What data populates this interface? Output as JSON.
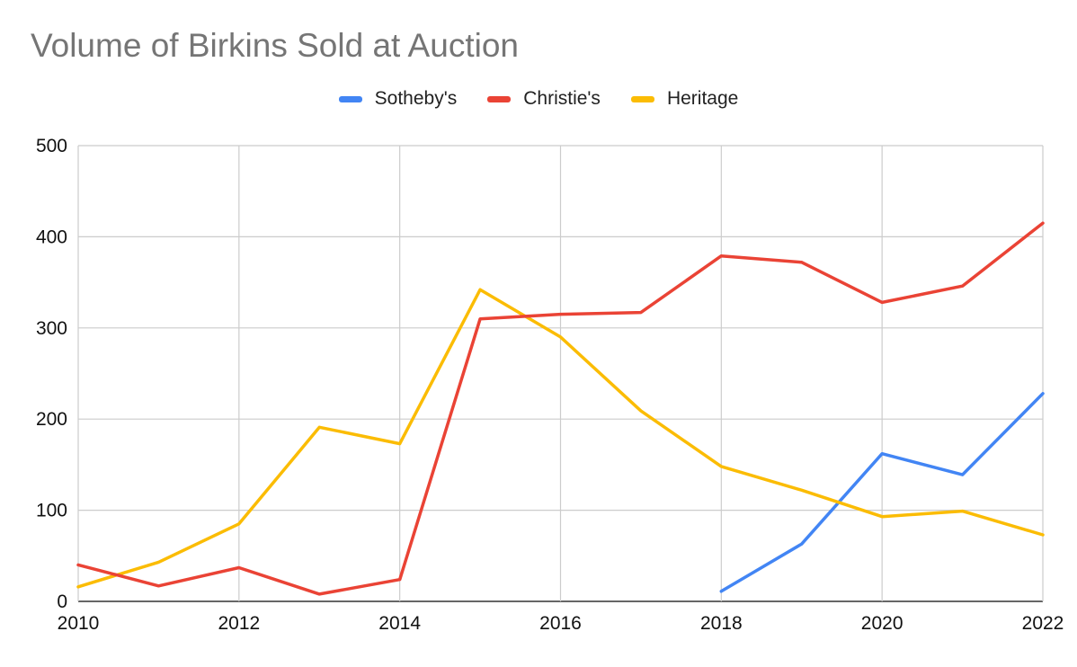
{
  "chart_data": {
    "type": "line",
    "title": "Volume of Birkins Sold at Auction",
    "x": [
      2010,
      2011,
      2012,
      2013,
      2014,
      2015,
      2016,
      2017,
      2018,
      2019,
      2020,
      2021,
      2022
    ],
    "xlim": [
      2010,
      2022
    ],
    "ylim": [
      0,
      500
    ],
    "xticks": [
      "2010",
      "2012",
      "2014",
      "2016",
      "2018",
      "2020",
      "2022"
    ],
    "yticks": [
      "0",
      "100",
      "200",
      "300",
      "400",
      "500"
    ],
    "grid": true,
    "legend_position": "top-center",
    "series": [
      {
        "name": "Sotheby's",
        "color": "#4285F4",
        "values": [
          null,
          null,
          null,
          null,
          null,
          null,
          null,
          null,
          11,
          63,
          162,
          139,
          228
        ]
      },
      {
        "name": "Christie's",
        "color": "#EA4335",
        "values": [
          40,
          17,
          37,
          8,
          24,
          310,
          315,
          317,
          379,
          372,
          328,
          346,
          415
        ]
      },
      {
        "name": "Heritage",
        "color": "#FBBC04",
        "values": [
          16,
          43,
          85,
          191,
          173,
          342,
          290,
          209,
          148,
          122,
          93,
          99,
          73
        ]
      }
    ]
  }
}
